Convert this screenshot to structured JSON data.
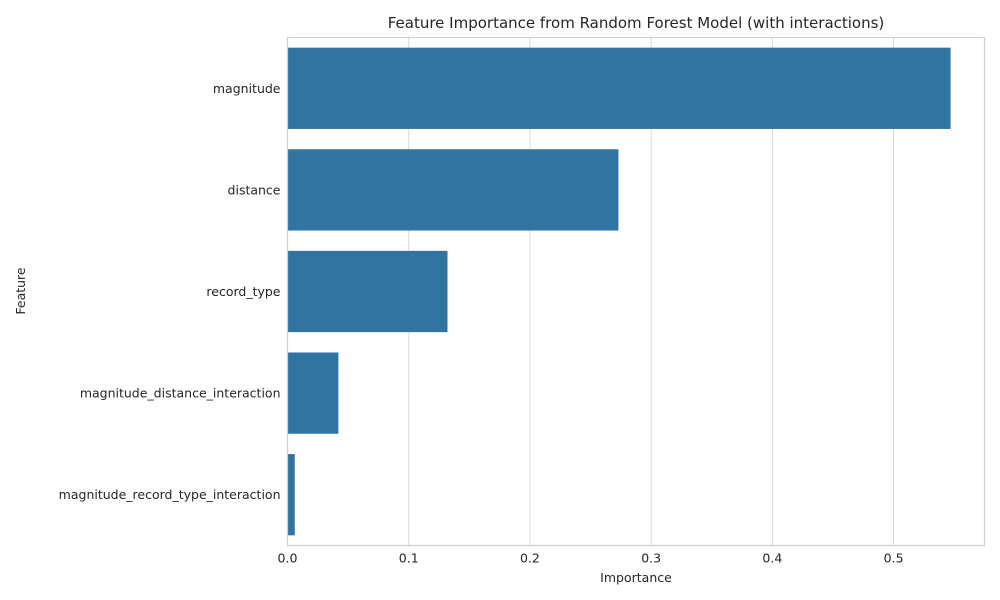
{
  "chart_data": {
    "type": "bar",
    "orientation": "horizontal",
    "title": "Feature Importance from Random Forest Model (with interactions)",
    "xlabel": "Importance",
    "ylabel": "Feature",
    "categories": [
      "magnitude",
      "distance",
      "record_type",
      "magnitude_distance_interaction",
      "magnitude_record_type_interaction"
    ],
    "values": [
      0.547,
      0.273,
      0.132,
      0.042,
      0.006
    ],
    "xlim": [
      0,
      0.575
    ],
    "xticks": [
      0.0,
      0.1,
      0.2,
      0.3,
      0.4,
      0.5
    ],
    "xtick_labels": [
      "0.0",
      "0.1",
      "0.2",
      "0.3",
      "0.4",
      "0.5"
    ],
    "grid": true,
    "bar_color": "#3274a1"
  }
}
